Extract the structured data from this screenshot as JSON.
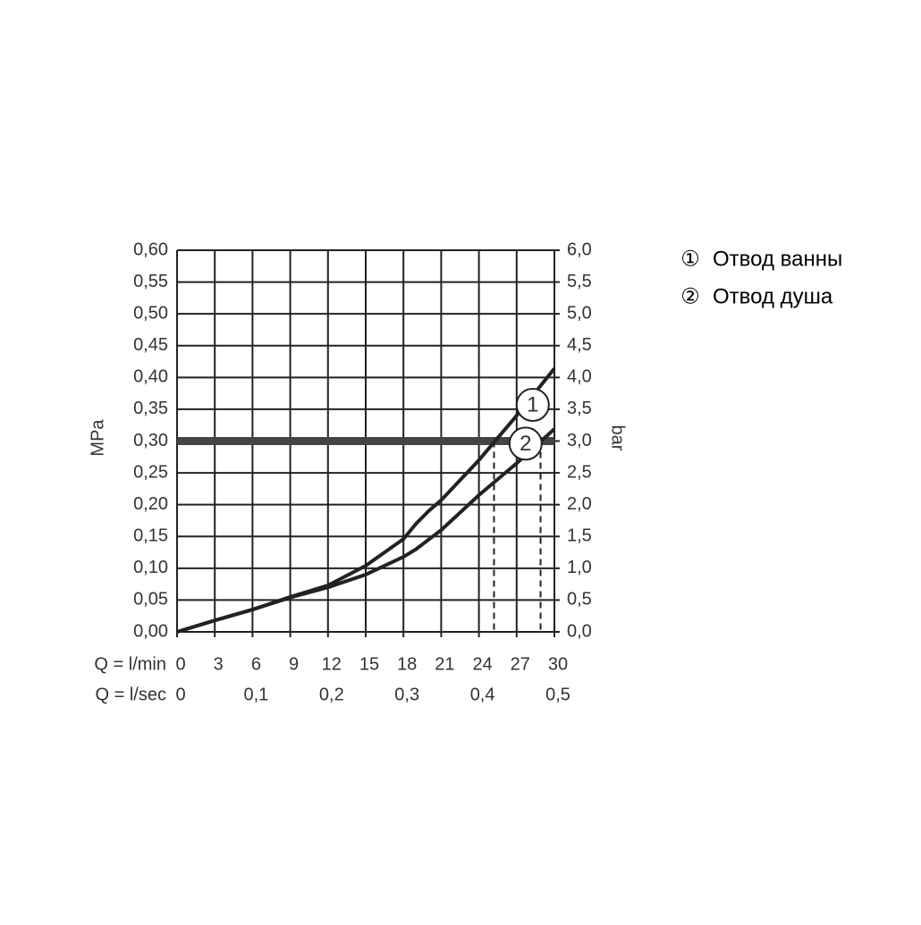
{
  "chart_data": {
    "type": "line",
    "x_label": "Q = l/min",
    "x2_label": "Q = l/sec",
    "y_label": "MPa",
    "y2_label": "bar",
    "x": [
      0,
      3,
      6,
      9,
      12,
      15,
      18,
      19,
      20,
      21,
      24,
      27,
      30
    ],
    "xlim": [
      0,
      30
    ],
    "xticks": [
      0,
      3,
      6,
      9,
      12,
      15,
      18,
      21,
      24,
      27,
      30
    ],
    "x2lim": [
      0,
      0.5
    ],
    "x2ticks": [
      0,
      {
        "value": 0.1,
        "label": "0,1"
      },
      {
        "value": 0.2,
        "label": "0,2"
      },
      {
        "value": 0.3,
        "label": "0,3"
      },
      {
        "value": 0.4,
        "label": "0,4"
      },
      {
        "value": 0.5,
        "label": "0,5"
      }
    ],
    "ylim": [
      0,
      0.6
    ],
    "yticks": [
      {
        "value": 0,
        "label": "0,00"
      },
      {
        "value": 0.05,
        "label": "0,05"
      },
      {
        "value": 0.1,
        "label": "0,10"
      },
      {
        "value": 0.15,
        "label": "0,15"
      },
      {
        "value": 0.2,
        "label": "0,20"
      },
      {
        "value": 0.25,
        "label": "0,25"
      },
      {
        "value": 0.3,
        "label": "0,30"
      },
      {
        "value": 0.35,
        "label": "0,35"
      },
      {
        "value": 0.4,
        "label": "0,40"
      },
      {
        "value": 0.45,
        "label": "0,45"
      },
      {
        "value": 0.5,
        "label": "0,50"
      },
      {
        "value": 0.55,
        "label": "0,55"
      },
      {
        "value": 0.6,
        "label": "0,60"
      }
    ],
    "y2lim": [
      0,
      6
    ],
    "y2ticks": [
      {
        "value": 0,
        "label": "0,0"
      },
      {
        "value": 0.5,
        "label": "0,5"
      },
      {
        "value": 1,
        "label": "1,0"
      },
      {
        "value": 1.5,
        "label": "1,5"
      },
      {
        "value": 2,
        "label": "2,0"
      },
      {
        "value": 2.5,
        "label": "2,5"
      },
      {
        "value": 3,
        "label": "3,0"
      },
      {
        "value": 3.5,
        "label": "3,5"
      },
      {
        "value": 4,
        "label": "4,0"
      },
      {
        "value": 4.5,
        "label": "4,5"
      },
      {
        "value": 5,
        "label": "5,0"
      },
      {
        "value": 5.5,
        "label": "5,5"
      },
      {
        "value": 6,
        "label": "6,0"
      }
    ],
    "grid": true,
    "reference_y": 0.3,
    "reference_x": [
      25.2,
      28.9
    ],
    "series": [
      {
        "name": "Отвод ванны",
        "legend_symbol": "①",
        "marker_label": "1",
        "color": "#222222",
        "values": [
          0,
          0.018,
          0.035,
          0.055,
          0.073,
          0.104,
          0.146,
          0.17,
          0.19,
          0.207,
          0.27,
          0.34,
          0.414
        ]
      },
      {
        "name": "Отвод душа",
        "legend_symbol": "②",
        "marker_label": "2",
        "color": "#222222",
        "values": [
          0,
          0.018,
          0.035,
          0.054,
          0.07,
          0.09,
          0.118,
          0.13,
          0.145,
          0.16,
          0.215,
          0.265,
          0.319
        ]
      }
    ]
  }
}
